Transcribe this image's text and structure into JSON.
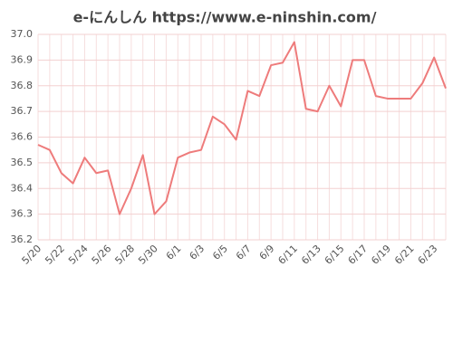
{
  "chart_data": {
    "type": "line",
    "title": "e-にんしん https://www.e-ninshin.com/",
    "categories": [
      "5/20",
      null,
      "5/22",
      null,
      "5/24",
      null,
      "5/26",
      null,
      "5/28",
      null,
      "5/30",
      null,
      "6/1",
      null,
      "6/3",
      null,
      "6/5",
      null,
      "6/7",
      null,
      "6/9",
      null,
      "6/11",
      null,
      "6/13",
      null,
      "6/15",
      null,
      "6/17",
      null,
      "6/19",
      null,
      "6/21",
      null,
      "6/23",
      null
    ],
    "series": [
      {
        "color": "#ee7b7b",
        "values": [
          36.57,
          36.55,
          36.46,
          36.42,
          36.52,
          36.46,
          36.47,
          36.3,
          36.4,
          36.53,
          36.3,
          36.35,
          36.52,
          36.54,
          36.55,
          36.68,
          36.65,
          36.59,
          36.78,
          36.76,
          36.88,
          36.89,
          36.97,
          36.71,
          36.7,
          36.8,
          36.72,
          36.9,
          36.9,
          36.76,
          36.75,
          36.75,
          36.75,
          36.81,
          36.91,
          36.79
        ]
      }
    ],
    "ylim": [
      36.2,
      37.0
    ],
    "yticks": [
      36.2,
      36.3,
      36.4,
      36.5,
      36.6,
      36.7,
      36.8,
      36.9,
      {
        "value": 37.0,
        "label": "37.0"
      }
    ],
    "grid": true
  }
}
